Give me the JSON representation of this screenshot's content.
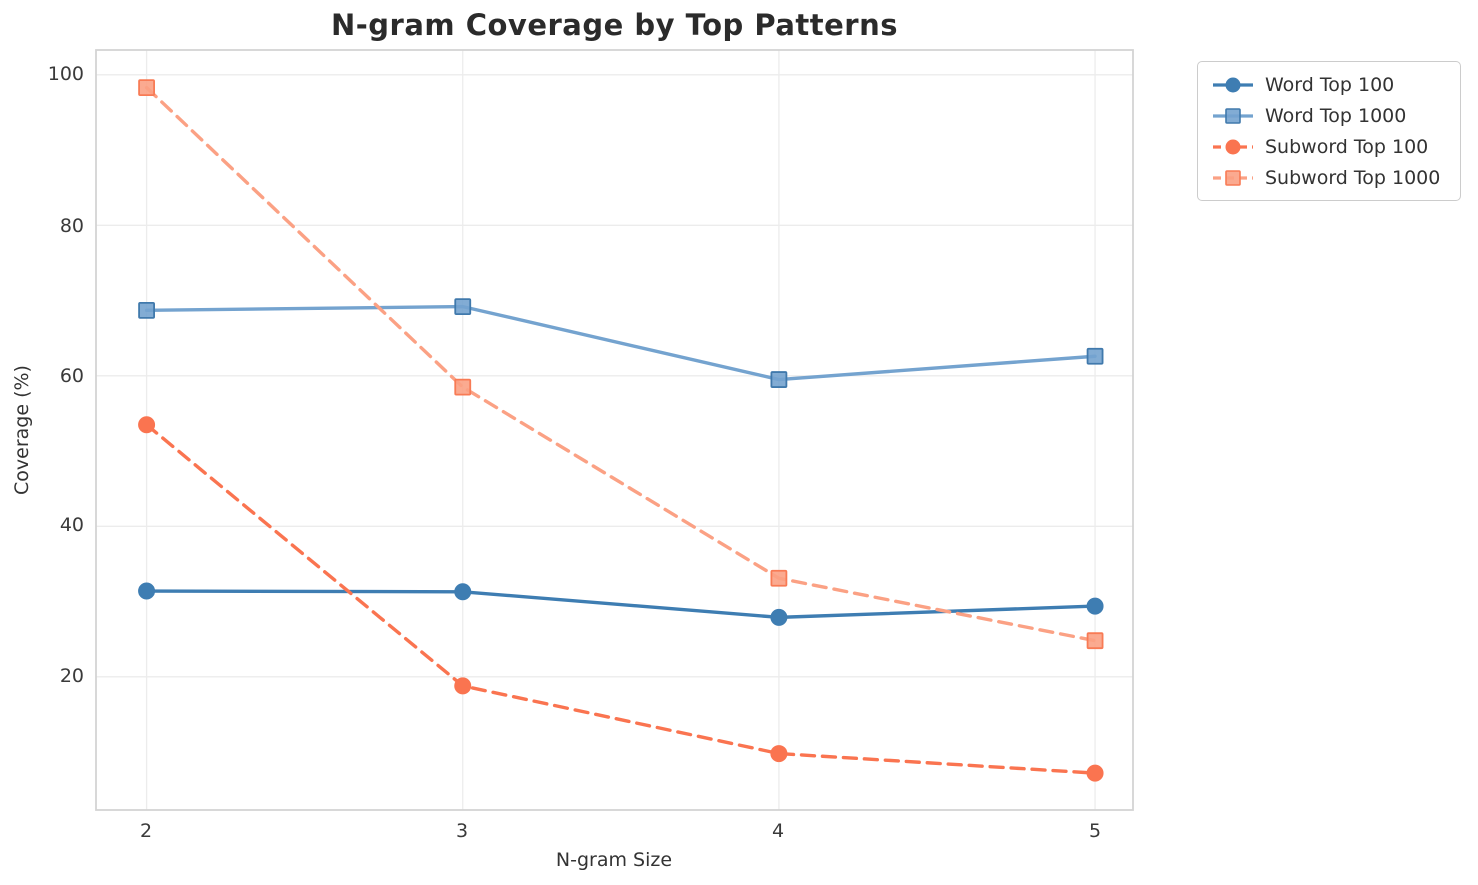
{
  "chart_data": {
    "type": "line",
    "title": "N-gram Coverage by Top Patterns",
    "xlabel": "N-gram Size",
    "ylabel": "Coverage (%)",
    "x": [
      2,
      3,
      4,
      5
    ],
    "xticks": [
      2,
      3,
      4,
      5
    ],
    "yticks": [
      100,
      80,
      60,
      40,
      20
    ],
    "xlim": [
      1.84,
      5.12
    ],
    "ylim": [
      2.3,
      103.3
    ],
    "grid": true,
    "legend_position": "outside-upper-right",
    "colors": {
      "word_top_100": "#3E7DB2",
      "word_top_1000": "#74A3CF",
      "subword_top_100": "#FA7450",
      "subword_top_1000": "#FBA184",
      "gridline": "#ECECEC",
      "spine": "#D4D4D4",
      "text": "#333333",
      "title": "#2B2B2B"
    },
    "series": [
      {
        "name": "Word Top 100",
        "values": [
          31.4,
          31.3,
          27.9,
          29.4
        ],
        "color": "#3E7DB2",
        "marker": "circle",
        "marker_edge": "#35699A",
        "line_style": "solid"
      },
      {
        "name": "Word Top 1000",
        "values": [
          68.7,
          69.2,
          59.5,
          62.6
        ],
        "color": "#74A3CF",
        "marker": "square",
        "marker_edge": "#4079AC",
        "line_style": "solid"
      },
      {
        "name": "Subword Top 100",
        "values": [
          53.5,
          18.8,
          9.8,
          7.2
        ],
        "color": "#FA7450",
        "marker": "circle",
        "marker_edge": "#E8603E",
        "line_style": "dashed"
      },
      {
        "name": "Subword Top 1000",
        "values": [
          98.3,
          58.5,
          33.1,
          24.8
        ],
        "color": "#FBA184",
        "marker": "square",
        "marker_edge": "#F87B55",
        "line_style": "dashed"
      }
    ]
  }
}
